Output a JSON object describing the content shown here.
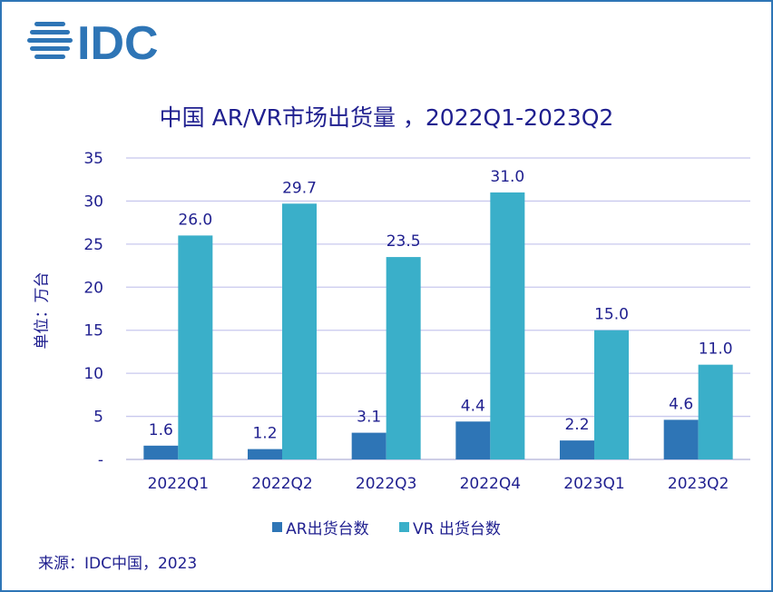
{
  "logo": "IDC",
  "chart_data": {
    "type": "bar",
    "title": "中国 AR/VR市场出货量 ，2022Q1-2023Q2",
    "ylabel": "单位：万台",
    "xlabel": "",
    "categories": [
      "2022Q1",
      "2022Q2",
      "2022Q3",
      "2022Q4",
      "2023Q1",
      "2023Q2"
    ],
    "series": [
      {
        "name": "AR出货台数",
        "color": "#2e75b6",
        "values": [
          1.6,
          1.2,
          3.1,
          4.4,
          2.2,
          4.6
        ]
      },
      {
        "name": "VR 出货台数",
        "color": "#3aafc9",
        "values": [
          26.0,
          29.7,
          23.5,
          31.0,
          15.0,
          11.0
        ]
      }
    ],
    "ylim": [
      0,
      35
    ],
    "yticks": [
      "-",
      "5",
      "10",
      "15",
      "20",
      "25",
      "30",
      "35"
    ],
    "grid": true,
    "legend": "bottom"
  },
  "source": "来源：IDC中国，2023"
}
